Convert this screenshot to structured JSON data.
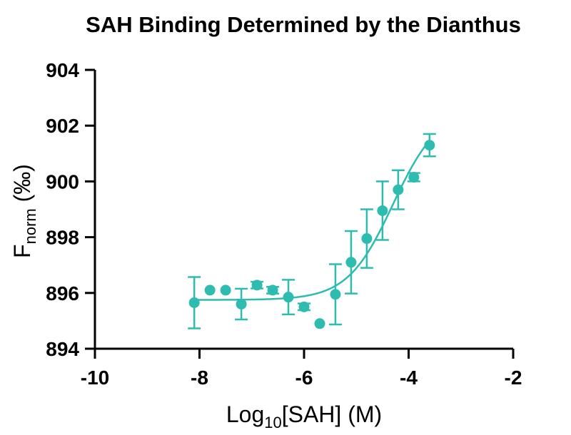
{
  "chart_data": {
    "type": "scatter",
    "title": "SAH Binding Determined by the Dianthus",
    "xlabel": {
      "main": "Log",
      "sub": "10",
      "rest": "[SAH] (M)"
    },
    "ylabel": {
      "main": "F",
      "sub": "norm",
      "rest": " (‰)"
    },
    "xlim": [
      -10,
      -2
    ],
    "ylim": [
      894,
      904
    ],
    "xticks": [
      "-10",
      "-8",
      "-6",
      "-4",
      "-2"
    ],
    "yticks": [
      "894",
      "896",
      "898",
      "900",
      "902",
      "904"
    ],
    "grid": false,
    "legend": "none",
    "color": "#2fbcb0",
    "points": [
      {
        "x": -8.1,
        "y": 895.65,
        "err": 0.92
      },
      {
        "x": -7.8,
        "y": 896.1,
        "err": 0.0
      },
      {
        "x": -7.5,
        "y": 896.1,
        "err": 0.0
      },
      {
        "x": -7.2,
        "y": 895.6,
        "err": 0.55
      },
      {
        "x": -6.9,
        "y": 896.28,
        "err": 0.12
      },
      {
        "x": -6.6,
        "y": 896.1,
        "err": 0.12
      },
      {
        "x": -6.3,
        "y": 895.85,
        "err": 0.62
      },
      {
        "x": -6.0,
        "y": 895.5,
        "err": 0.12
      },
      {
        "x": -5.7,
        "y": 894.9,
        "err": 0.0
      },
      {
        "x": -5.4,
        "y": 895.95,
        "err": 1.08
      },
      {
        "x": -5.1,
        "y": 897.1,
        "err": 1.12
      },
      {
        "x": -4.8,
        "y": 897.95,
        "err": 1.05
      },
      {
        "x": -4.5,
        "y": 898.95,
        "err": 1.05
      },
      {
        "x": -4.2,
        "y": 899.7,
        "err": 0.7
      },
      {
        "x": -3.9,
        "y": 900.15,
        "err": 0.15
      },
      {
        "x": -3.6,
        "y": 901.3,
        "err": 0.4
      }
    ],
    "fit": {
      "bottom": 895.75,
      "top": 902.6,
      "logEC50": -4.3,
      "hill": 1.0,
      "range": [
        -8.1,
        -3.6
      ]
    }
  }
}
